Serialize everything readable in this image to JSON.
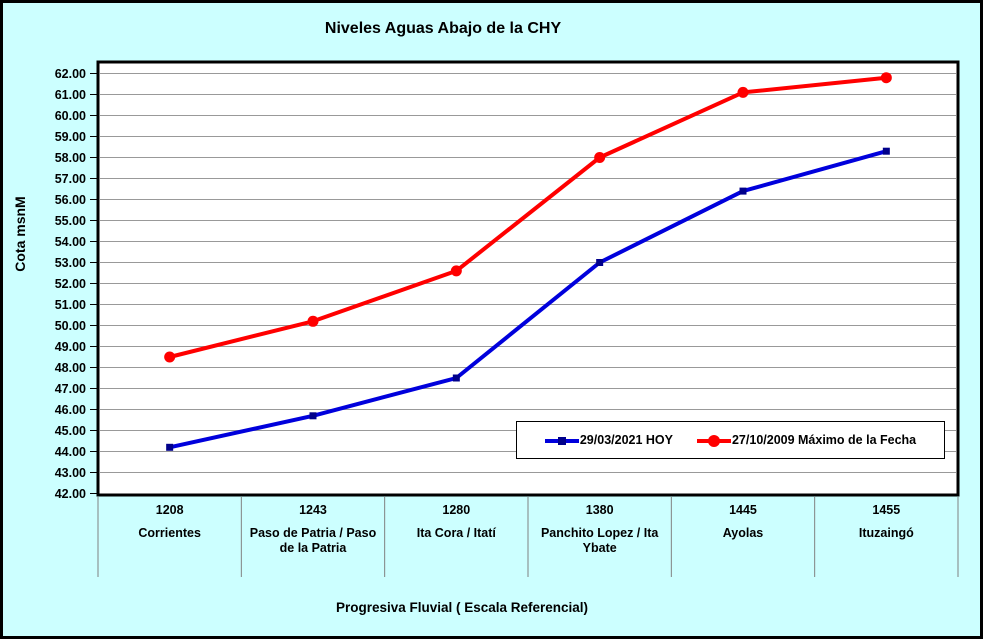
{
  "chart_data": {
    "type": "line",
    "title": "Niveles Aguas Abajo de la CHY",
    "ylabel": "Cota msnM",
    "xlabel": "Progresiva Fluvial ( Escala Referencial)",
    "ylim": [
      42,
      62
    ],
    "ytick_step": 1,
    "ytick_decimals": 2,
    "grid": true,
    "legend_position": "inside-bottom-right",
    "categories": [
      {
        "position": "1208",
        "name": "Corrientes"
      },
      {
        "position": "1243",
        "name": "Paso de Patria / Paso de la Patria"
      },
      {
        "position": "1280",
        "name": "Ita Cora / Itatí"
      },
      {
        "position": "1380",
        "name": "Panchito Lopez / Ita Ybate"
      },
      {
        "position": "1445",
        "name": "Ayolas"
      },
      {
        "position": "1455",
        "name": "Ituzaingó"
      }
    ],
    "series": [
      {
        "name": "29/03/2021 HOY",
        "color": "#0000DC",
        "marker": "square",
        "marker_color": "#00008B",
        "values": [
          44.2,
          45.7,
          47.5,
          53.0,
          56.4,
          58.3
        ]
      },
      {
        "name": "27/10/2009 Máximo de la Fecha",
        "color": "#FF0000",
        "marker": "circle",
        "marker_color": "#FF0000",
        "values": [
          48.5,
          50.2,
          52.6,
          58.0,
          61.1,
          61.8
        ]
      }
    ]
  },
  "colors": {
    "background": "#CCFFFF",
    "plot_background": "#FFFFFF",
    "gridline": "#999999",
    "separator": "#808080",
    "axis_border": "#000000",
    "legend_background": "#FFFFFF",
    "text": "#000000"
  }
}
